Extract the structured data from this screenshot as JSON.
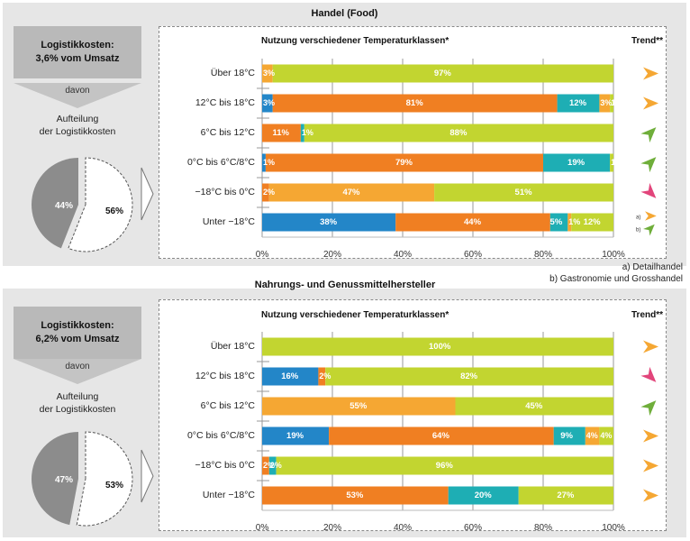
{
  "colors": {
    "blue": "#2386c8",
    "orange": "#f07f22",
    "teal": "#1eaeb4",
    "yellow": "#f5a733",
    "green": "#c2d530",
    "pie_gray": "#8c8c8c",
    "trend_orange": "#f5a733",
    "trend_green": "#6fae3a",
    "trend_pink": "#e2457b"
  },
  "footnotes": {
    "a": "a) Detailhandel",
    "b": "b) Gastronomie und Grosshandel"
  },
  "chart_data": [
    {
      "type": "bar",
      "orientation": "horizontal-stacked",
      "section_title": "Handel (Food)",
      "cost_box": {
        "line1": "Logistikkosten:",
        "line2": "3,6% vom Umsatz"
      },
      "davon": "davon",
      "aufteilung": {
        "line1": "Aufteilung",
        "line2": "der Logistikkosten"
      },
      "pie": {
        "slices": [
          {
            "value": 44,
            "label": "44%",
            "style": "filled"
          },
          {
            "value": 56,
            "label": "56%",
            "style": "dashed"
          }
        ]
      },
      "title": "Nutzung verschiedener Temperaturklassen*",
      "trend_title": "Trend**",
      "xlim": [
        0,
        100
      ],
      "xticks": [
        "0%",
        "20%",
        "40%",
        "60%",
        "80%",
        "100%"
      ],
      "categories": [
        "Über 18°C",
        "12°C bis 18°C",
        "6°C bis 12°C",
        "0°C bis 6°C/8°C",
        "−18°C bis 0°C",
        "Unter −18°C"
      ],
      "rows": [
        {
          "segments": [
            {
              "color": "yellow",
              "value": 3,
              "label": "3%"
            },
            {
              "color": "green",
              "value": 97,
              "label": "97%"
            }
          ],
          "trend": [
            {
              "dir": "right",
              "color": "trend_orange"
            }
          ]
        },
        {
          "segments": [
            {
              "color": "blue",
              "value": 3,
              "label": "3%"
            },
            {
              "color": "orange",
              "value": 81,
              "label": "81%"
            },
            {
              "color": "teal",
              "value": 12,
              "label": "12%"
            },
            {
              "color": "yellow",
              "value": 3,
              "label": "3%"
            },
            {
              "color": "green",
              "value": 1,
              "label": "1%"
            }
          ],
          "trend": [
            {
              "dir": "right",
              "color": "trend_orange"
            }
          ]
        },
        {
          "segments": [
            {
              "color": "orange",
              "value": 11,
              "label": "11%"
            },
            {
              "color": "teal",
              "value": 1,
              "label": "1%"
            },
            {
              "color": "green",
              "value": 88,
              "label": "88%"
            }
          ],
          "trend": [
            {
              "dir": "up",
              "color": "trend_green"
            }
          ]
        },
        {
          "segments": [
            {
              "color": "blue",
              "value": 1,
              "label": "1%"
            },
            {
              "color": "orange",
              "value": 79,
              "label": "79%"
            },
            {
              "color": "teal",
              "value": 19,
              "label": "19%"
            },
            {
              "color": "green",
              "value": 1,
              "label": "1%"
            }
          ],
          "trend": [
            {
              "dir": "up",
              "color": "trend_green"
            }
          ]
        },
        {
          "segments": [
            {
              "color": "orange",
              "value": 2,
              "label": "2%"
            },
            {
              "color": "yellow",
              "value": 47,
              "label": "47%"
            },
            {
              "color": "green",
              "value": 51,
              "label": "51%"
            }
          ],
          "trend": [
            {
              "dir": "down",
              "color": "trend_pink"
            }
          ]
        },
        {
          "segments": [
            {
              "color": "blue",
              "value": 38,
              "label": "38%"
            },
            {
              "color": "orange",
              "value": 44,
              "label": "44%"
            },
            {
              "color": "teal",
              "value": 5,
              "label": "5%"
            },
            {
              "color": "yellow",
              "value": 1,
              "label": "1%"
            },
            {
              "color": "green",
              "value": 12,
              "label": "12%"
            }
          ],
          "trend": [
            {
              "dir": "right",
              "color": "trend_orange",
              "note": "a)"
            },
            {
              "dir": "up",
              "color": "trend_green",
              "note": "b)"
            }
          ]
        }
      ]
    },
    {
      "type": "bar",
      "orientation": "horizontal-stacked",
      "section_title": "Nahrungs- und Genussmittelhersteller",
      "cost_box": {
        "line1": "Logistikkosten:",
        "line2": "6,2% vom Umsatz"
      },
      "davon": "davon",
      "aufteilung": {
        "line1": "Aufteilung",
        "line2": "der Logistikkosten"
      },
      "pie": {
        "slices": [
          {
            "value": 47,
            "label": "47%",
            "style": "filled"
          },
          {
            "value": 53,
            "label": "53%",
            "style": "dashed"
          }
        ]
      },
      "title": "Nutzung verschiedener Temperaturklassen*",
      "trend_title": "Trend**",
      "xlim": [
        0,
        100
      ],
      "xticks": [
        "0%",
        "20%",
        "40%",
        "60%",
        "80%",
        "100%"
      ],
      "categories": [
        "Über 18°C",
        "12°C bis 18°C",
        "6°C bis 12°C",
        "0°C bis 6°C/8°C",
        "−18°C bis 0°C",
        "Unter −18°C"
      ],
      "rows": [
        {
          "segments": [
            {
              "color": "green",
              "value": 100,
              "label": "100%"
            }
          ],
          "trend": [
            {
              "dir": "right",
              "color": "trend_orange"
            }
          ]
        },
        {
          "segments": [
            {
              "color": "blue",
              "value": 16,
              "label": "16%"
            },
            {
              "color": "orange",
              "value": 2,
              "label": "2%"
            },
            {
              "color": "green",
              "value": 82,
              "label": "82%"
            }
          ],
          "trend": [
            {
              "dir": "down",
              "color": "trend_pink"
            }
          ]
        },
        {
          "segments": [
            {
              "color": "yellow",
              "value": 55,
              "label": "55%"
            },
            {
              "color": "green",
              "value": 45,
              "label": "45%"
            }
          ],
          "trend": [
            {
              "dir": "up",
              "color": "trend_green"
            }
          ]
        },
        {
          "segments": [
            {
              "color": "blue",
              "value": 19,
              "label": "19%"
            },
            {
              "color": "orange",
              "value": 64,
              "label": "64%"
            },
            {
              "color": "teal",
              "value": 9,
              "label": "9%"
            },
            {
              "color": "yellow",
              "value": 4,
              "label": "4%"
            },
            {
              "color": "green",
              "value": 4,
              "label": "4%"
            }
          ],
          "trend": [
            {
              "dir": "right",
              "color": "trend_orange"
            }
          ]
        },
        {
          "segments": [
            {
              "color": "orange",
              "value": 2,
              "label": "2%"
            },
            {
              "color": "teal",
              "value": 2,
              "label": "2%"
            },
            {
              "color": "green",
              "value": 96,
              "label": "96%"
            }
          ],
          "trend": [
            {
              "dir": "right",
              "color": "trend_orange"
            }
          ]
        },
        {
          "segments": [
            {
              "color": "orange",
              "value": 53,
              "label": "53%"
            },
            {
              "color": "teal",
              "value": 20,
              "label": "20%"
            },
            {
              "color": "green",
              "value": 27,
              "label": "27%"
            }
          ],
          "trend": [
            {
              "dir": "right",
              "color": "trend_orange"
            }
          ]
        }
      ]
    }
  ]
}
